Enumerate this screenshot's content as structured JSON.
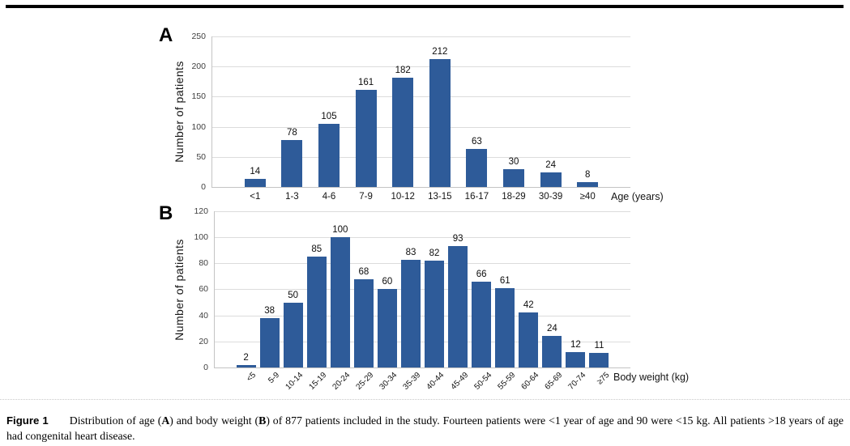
{
  "colors": {
    "bar": "#2E5B99",
    "gridline": "#DCDCDC",
    "axis": "#C4C4C4"
  },
  "chart_data": [
    {
      "type": "bar",
      "panel_label": "A",
      "ylabel": "Number of patients",
      "xlabel": "Age (years)",
      "categories": [
        "<1",
        "1-3",
        "4-6",
        "7-9",
        "10-12",
        "13-15",
        "16-17",
        "18-29",
        "30-39",
        "≥40"
      ],
      "values": [
        14,
        78,
        105,
        161,
        182,
        212,
        63,
        30,
        24,
        8
      ],
      "y_ticks": [
        0,
        50,
        100,
        150,
        200,
        250
      ],
      "ylim": [
        0,
        250
      ],
      "grid": true,
      "legend": "none",
      "rotated_x_labels": false
    },
    {
      "type": "bar",
      "panel_label": "B",
      "ylabel": "Number of patients",
      "xlabel": "Body weight (kg)",
      "categories": [
        "<5",
        "5-9",
        "10-14",
        "15-19",
        "20-24",
        "25-29",
        "30-34",
        "35-39",
        "40-44",
        "45-49",
        "50-54",
        "55-59",
        "60-64",
        "65-69",
        "70-74",
        "≥75"
      ],
      "values": [
        2,
        38,
        50,
        85,
        100,
        68,
        60,
        83,
        82,
        93,
        66,
        61,
        42,
        24,
        12,
        11
      ],
      "y_ticks": [
        0,
        20,
        40,
        60,
        80,
        100,
        120
      ],
      "ylim": [
        0,
        120
      ],
      "grid": true,
      "legend": "none",
      "rotated_x_labels": true
    }
  ],
  "caption": {
    "label": "Figure 1",
    "segments": [
      {
        "text": "Distribution of age (",
        "bold": false
      },
      {
        "text": "A",
        "bold": true
      },
      {
        "text": ") and body weight (",
        "bold": false
      },
      {
        "text": "B",
        "bold": true
      },
      {
        "text": ") of 877 patients included in the study. Fourteen patients were <1 year of age and 90 were <15 kg. All patients >18 years of age had congenital heart disease.",
        "bold": false
      }
    ]
  }
}
